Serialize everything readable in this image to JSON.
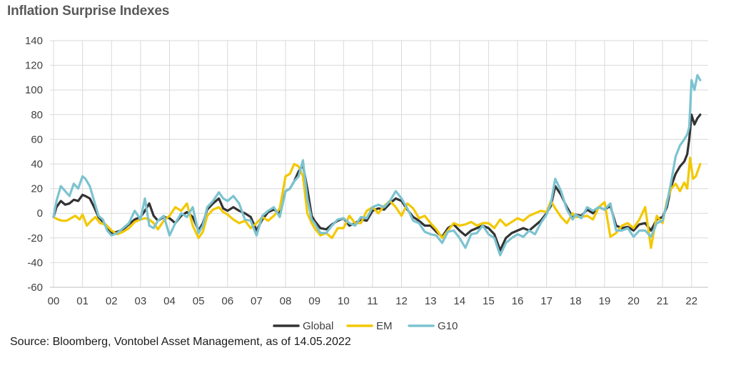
{
  "title": "Inflation Surprise Indexes",
  "source": "Source: Bloomberg, Vontobel Asset Management, as of 14.05.2022",
  "chart_data": {
    "type": "line",
    "title": "Inflation Surprise Indexes",
    "xlabel": "",
    "ylabel": "",
    "ylim": [
      -60,
      140
    ],
    "yticks": [
      "140",
      "120",
      "100",
      "80",
      "60",
      "40",
      "20",
      "0",
      "-20",
      "-40",
      "-60"
    ],
    "xlim": [
      2000,
      2022.4
    ],
    "xticks": [
      "00",
      "01",
      "02",
      "03",
      "04",
      "05",
      "06",
      "07",
      "08",
      "09",
      "10",
      "11",
      "12",
      "13",
      "14",
      "15",
      "16",
      "17",
      "18",
      "19",
      "20",
      "21",
      "22"
    ],
    "grid": true,
    "legend_position": "bottom",
    "series": [
      {
        "name": "Global",
        "color": "#333333",
        "x": [
          2000,
          2000.1,
          2000.25,
          2000.4,
          2000.55,
          2000.7,
          2000.85,
          2001,
          2001.1,
          2001.25,
          2001.4,
          2001.55,
          2001.7,
          2001.85,
          2002,
          2002.2,
          2002.4,
          2002.6,
          2002.8,
          2003,
          2003.15,
          2003.3,
          2003.45,
          2003.6,
          2003.8,
          2004,
          2004.2,
          2004.4,
          2004.6,
          2004.8,
          2005,
          2005.15,
          2005.3,
          2005.5,
          2005.7,
          2005.85,
          2006,
          2006.2,
          2006.4,
          2006.6,
          2006.8,
          2007,
          2007.2,
          2007.4,
          2007.6,
          2007.8,
          2008,
          2008.15,
          2008.3,
          2008.45,
          2008.6,
          2008.75,
          2008.9,
          2009,
          2009.2,
          2009.4,
          2009.6,
          2009.8,
          2010,
          2010.2,
          2010.4,
          2010.6,
          2010.8,
          2011,
          2011.2,
          2011.4,
          2011.6,
          2011.8,
          2012,
          2012.2,
          2012.4,
          2012.6,
          2012.8,
          2013,
          2013.2,
          2013.4,
          2013.6,
          2013.8,
          2014,
          2014.2,
          2014.4,
          2014.6,
          2014.8,
          2015,
          2015.2,
          2015.4,
          2015.6,
          2015.8,
          2016,
          2016.2,
          2016.4,
          2016.6,
          2016.8,
          2017,
          2017.15,
          2017.3,
          2017.5,
          2017.7,
          2017.9,
          2018,
          2018.2,
          2018.4,
          2018.6,
          2018.8,
          2019,
          2019.2,
          2019.4,
          2019.6,
          2019.8,
          2020,
          2020.2,
          2020.4,
          2020.6,
          2020.8,
          2021,
          2021.15,
          2021.3,
          2021.45,
          2021.6,
          2021.75,
          2021.85,
          2021.92,
          2022,
          2022.1,
          2022.2,
          2022.3
        ],
        "values": [
          -3,
          5,
          10,
          7,
          8,
          11,
          10,
          15,
          14,
          12,
          5,
          -3,
          -7,
          -12,
          -16,
          -15,
          -13,
          -9,
          -5,
          -3,
          2,
          8,
          -2,
          -6,
          -3,
          -4,
          -8,
          -2,
          1,
          -3,
          -14,
          -8,
          3,
          8,
          12,
          4,
          2,
          5,
          2,
          0,
          -3,
          -14,
          -5,
          1,
          3,
          0,
          18,
          20,
          26,
          34,
          39,
          20,
          -2,
          -6,
          -12,
          -13,
          -9,
          -6,
          -4,
          -10,
          -8,
          -5,
          -6,
          2,
          4,
          3,
          8,
          12,
          10,
          3,
          -3,
          -6,
          -10,
          -10,
          -15,
          -19,
          -12,
          -9,
          -14,
          -18,
          -14,
          -12,
          -10,
          -12,
          -17,
          -30,
          -20,
          -16,
          -14,
          -12,
          -14,
          -10,
          -6,
          0,
          6,
          22,
          15,
          5,
          -3,
          -1,
          -2,
          3,
          0,
          5,
          3,
          6,
          -10,
          -12,
          -11,
          -14,
          -9,
          -8,
          -14,
          -5,
          -3,
          5,
          22,
          32,
          38,
          42,
          48,
          60,
          80,
          72,
          77,
          80
        ]
      },
      {
        "name": "EM",
        "color": "#f2c800",
        "x": [
          2000,
          2000.15,
          2000.3,
          2000.45,
          2000.6,
          2000.75,
          2000.9,
          2001,
          2001.15,
          2001.3,
          2001.45,
          2001.6,
          2001.8,
          2002,
          2002.2,
          2002.4,
          2002.6,
          2002.8,
          2003,
          2003.15,
          2003.3,
          2003.45,
          2003.6,
          2003.8,
          2004,
          2004.2,
          2004.4,
          2004.6,
          2004.8,
          2005,
          2005.15,
          2005.3,
          2005.5,
          2005.7,
          2005.85,
          2006,
          2006.2,
          2006.4,
          2006.6,
          2006.8,
          2007,
          2007.2,
          2007.4,
          2007.6,
          2007.8,
          2008,
          2008.15,
          2008.3,
          2008.45,
          2008.6,
          2008.75,
          2008.9,
          2009,
          2009.2,
          2009.4,
          2009.6,
          2009.8,
          2010,
          2010.2,
          2010.4,
          2010.6,
          2010.8,
          2011,
          2011.2,
          2011.4,
          2011.6,
          2011.8,
          2012,
          2012.2,
          2012.4,
          2012.6,
          2012.8,
          2013,
          2013.2,
          2013.4,
          2013.6,
          2013.8,
          2014,
          2014.2,
          2014.4,
          2014.6,
          2014.8,
          2015,
          2015.2,
          2015.4,
          2015.6,
          2015.8,
          2016,
          2016.2,
          2016.4,
          2016.6,
          2016.8,
          2017,
          2017.15,
          2017.3,
          2017.5,
          2017.7,
          2017.9,
          2018,
          2018.2,
          2018.4,
          2018.6,
          2018.8,
          2019,
          2019.2,
          2019.4,
          2019.6,
          2019.8,
          2020,
          2020.2,
          2020.4,
          2020.6,
          2020.8,
          2021,
          2021.15,
          2021.3,
          2021.45,
          2021.6,
          2021.75,
          2021.85,
          2021.95,
          2022.05,
          2022.15,
          2022.3
        ],
        "values": [
          -3,
          -5,
          -6,
          -6,
          -4,
          -2,
          -5,
          -1,
          -10,
          -6,
          -3,
          -8,
          -9,
          -14,
          -17,
          -15,
          -12,
          -7,
          -5,
          -4,
          -5,
          -8,
          -13,
          -6,
          -2,
          5,
          2,
          8,
          -10,
          -20,
          -15,
          -2,
          3,
          5,
          1,
          -1,
          -5,
          -8,
          -6,
          -12,
          -8,
          -3,
          -6,
          -2,
          4,
          30,
          32,
          40,
          38,
          30,
          0,
          -8,
          -12,
          -18,
          -16,
          -20,
          -12,
          -12,
          -2,
          -8,
          -8,
          2,
          5,
          0,
          6,
          10,
          5,
          -2,
          8,
          4,
          -4,
          -2,
          -8,
          -13,
          -20,
          -14,
          -8,
          -10,
          -9,
          -7,
          -10,
          -8,
          -8,
          -12,
          -5,
          -10,
          -7,
          -4,
          -6,
          -2,
          0,
          2,
          1,
          10,
          4,
          -3,
          -8,
          0,
          -3,
          -3,
          -2,
          -5,
          5,
          9,
          -19,
          -16,
          -10,
          -8,
          -12,
          -5,
          5,
          -28,
          -2,
          -8,
          10,
          20,
          24,
          18,
          25,
          20,
          45,
          28,
          30,
          40
        ]
      },
      {
        "name": "G10",
        "color": "#7cc3d1",
        "x": [
          2000,
          2000.1,
          2000.25,
          2000.4,
          2000.55,
          2000.7,
          2000.85,
          2001,
          2001.1,
          2001.25,
          2001.4,
          2001.55,
          2001.7,
          2001.85,
          2002,
          2002.2,
          2002.4,
          2002.6,
          2002.8,
          2003,
          2003.15,
          2003.3,
          2003.45,
          2003.6,
          2003.8,
          2004,
          2004.2,
          2004.4,
          2004.6,
          2004.8,
          2005,
          2005.15,
          2005.3,
          2005.5,
          2005.7,
          2005.85,
          2006,
          2006.2,
          2006.4,
          2006.6,
          2006.8,
          2007,
          2007.2,
          2007.4,
          2007.6,
          2007.8,
          2008,
          2008.15,
          2008.3,
          2008.45,
          2008.6,
          2008.75,
          2008.9,
          2009,
          2009.2,
          2009.4,
          2009.6,
          2009.8,
          2010,
          2010.2,
          2010.4,
          2010.6,
          2010.8,
          2011,
          2011.2,
          2011.4,
          2011.6,
          2011.8,
          2012,
          2012.2,
          2012.4,
          2012.6,
          2012.8,
          2013,
          2013.2,
          2013.4,
          2013.6,
          2013.8,
          2014,
          2014.2,
          2014.4,
          2014.6,
          2014.8,
          2015,
          2015.2,
          2015.4,
          2015.6,
          2015.8,
          2016,
          2016.2,
          2016.4,
          2016.6,
          2016.8,
          2017,
          2017.15,
          2017.3,
          2017.5,
          2017.7,
          2017.9,
          2018,
          2018.2,
          2018.4,
          2018.6,
          2018.8,
          2019,
          2019.2,
          2019.4,
          2019.6,
          2019.8,
          2020,
          2020.2,
          2020.4,
          2020.6,
          2020.8,
          2021,
          2021.15,
          2021.3,
          2021.45,
          2021.6,
          2021.75,
          2021.85,
          2021.92,
          2022,
          2022.1,
          2022.2,
          2022.3
        ],
        "values": [
          -3,
          10,
          22,
          18,
          14,
          24,
          20,
          30,
          28,
          22,
          10,
          -2,
          -5,
          -14,
          -18,
          -16,
          -12,
          -8,
          2,
          -5,
          12,
          -10,
          -12,
          -6,
          -2,
          -18,
          -8,
          0,
          -3,
          5,
          -16,
          -10,
          5,
          10,
          17,
          12,
          10,
          14,
          8,
          -5,
          -6,
          -18,
          -2,
          2,
          5,
          -3,
          18,
          20,
          26,
          30,
          43,
          12,
          -5,
          -8,
          -16,
          -16,
          -10,
          -5,
          -4,
          -8,
          -10,
          -3,
          -4,
          5,
          7,
          5,
          10,
          18,
          12,
          4,
          -6,
          -8,
          -15,
          -17,
          -18,
          -24,
          -15,
          -14,
          -20,
          -28,
          -17,
          -16,
          -10,
          -17,
          -20,
          -34,
          -24,
          -20,
          -17,
          -19,
          -14,
          -17,
          -8,
          -1,
          8,
          28,
          18,
          3,
          -5,
          -1,
          -4,
          5,
          2,
          5,
          3,
          8,
          -14,
          -14,
          -12,
          -19,
          -14,
          -14,
          -19,
          -8,
          -6,
          8,
          26,
          46,
          55,
          60,
          64,
          70,
          108,
          100,
          112,
          108
        ]
      }
    ]
  }
}
